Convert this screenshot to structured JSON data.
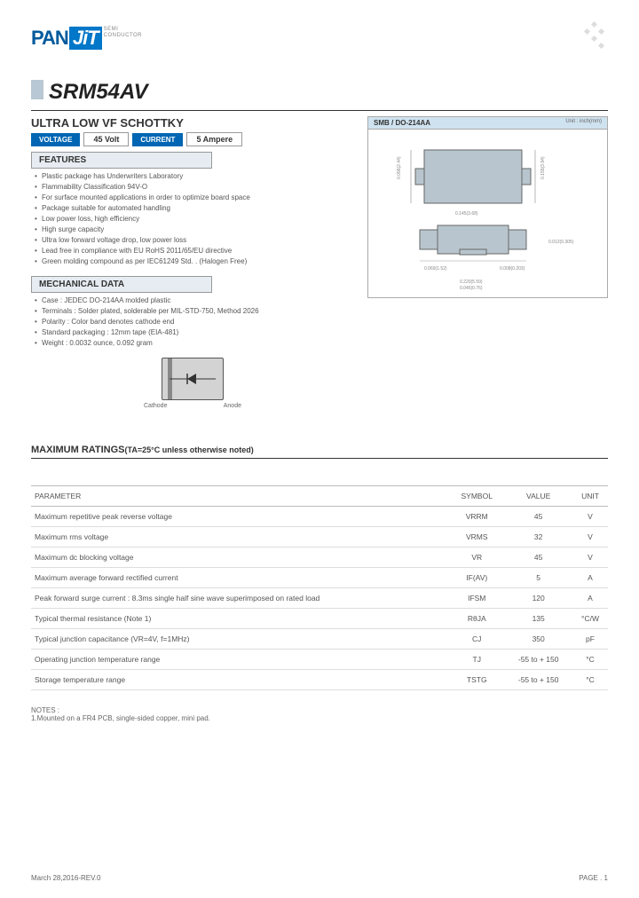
{
  "logo": {
    "pan": "PAN",
    "jit": "JiT",
    "sub1": "SEMI",
    "sub2": "CONDUCTOR"
  },
  "part_number": "SRM54AV",
  "subtitle": "ULTRA LOW VF SCHOTTKY",
  "specs": {
    "voltage_label": "VOLTAGE",
    "voltage_value": "45 Volt",
    "current_label": "CURRENT",
    "current_value": "5 Ampere"
  },
  "features_hdr": "FEATURES",
  "features": [
    "Plastic package has Underwriters Laboratory",
    "Flammability Classification 94V-O",
    "For surface mounted applications in order to optimize board space",
    "Package suitable for automated handling",
    "Low power loss, high efficiency",
    "High surge capacity",
    "Ultra low forward voltage drop, low power loss",
    "Lead free in compliance with EU RoHS 2011/65/EU directive",
    "Green molding compound as per IEC61249 Std. . (Halogen Free)"
  ],
  "mech_hdr": "MECHANICAL  DATA",
  "mech": [
    "Case : JEDEC DO-214AA molded plastic",
    "Terminals : Solder plated, solderable per MIL-STD-750, Method 2026",
    "Polarity : Color band denotes cathode end",
    "Standard packaging : 12mm tape (EIA-481)",
    "Weight : 0.0032 ounce, 0.092 gram"
  ],
  "diode": {
    "cathode": "Cathode",
    "anode": "Anode"
  },
  "pkg": {
    "title": "SMB / DO-214AA",
    "unit": "Unit : inch(mm)"
  },
  "ratings_hdr": "MAXIMUM  RATINGS",
  "ratings_cond": "(TA=25°C unless otherwise noted)",
  "table": {
    "cols": [
      "PARAMETER",
      "SYMBOL",
      "VALUE",
      "UNIT"
    ],
    "rows": [
      [
        "Maximum repetitive peak reverse voltage",
        "VRRM",
        "45",
        "V"
      ],
      [
        "Maximum rms voltage",
        "VRMS",
        "32",
        "V"
      ],
      [
        "Maximum dc blocking voltage",
        "VR",
        "45",
        "V"
      ],
      [
        "Maximum average forward rectified current",
        "IF(AV)",
        "5",
        "A"
      ],
      [
        "Peak forward surge current : 8.3ms single half sine wave superimposed on rated load",
        "IFSM",
        "120",
        "A"
      ],
      [
        "Typical thermal resistance                                          (Note 1)",
        "RθJA",
        "135",
        "°C/W"
      ],
      [
        "Typical junction capacitance (VR=4V, f=1MHz)",
        "CJ",
        "350",
        "pF"
      ],
      [
        "Operating junction temperature range",
        "TJ",
        "-55 to + 150",
        "°C"
      ],
      [
        "Storage temperature range",
        "TSTG",
        "-55 to + 150",
        "°C"
      ]
    ]
  },
  "notes_hdr": "NOTES :",
  "notes": "1.Mounted on a FR4 PCB, single-sided copper, mini pad.",
  "footer": {
    "date": "March 28,2016-REV.0",
    "page": "PAGE . 1"
  },
  "colors": {
    "brand": "#0066b3",
    "light": "#e6ecf1",
    "pkg_hdr": "#cfe2ef",
    "gray": "#d3d3d3"
  }
}
